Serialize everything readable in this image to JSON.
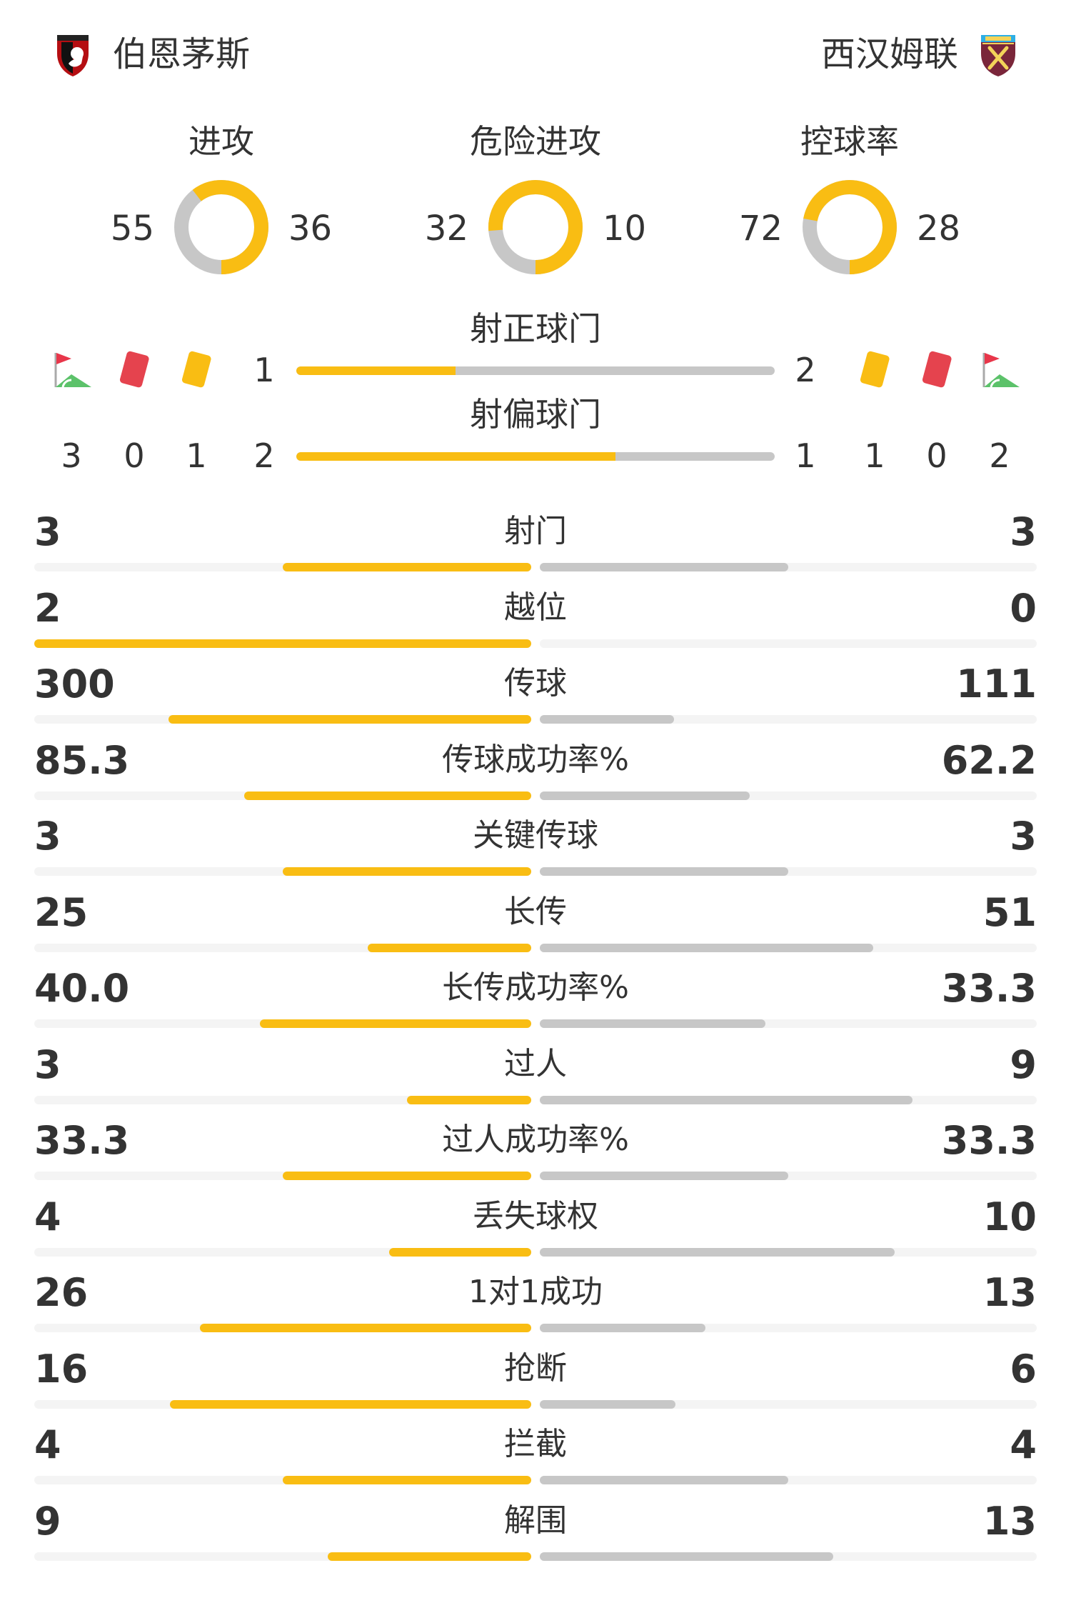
{
  "colors": {
    "home": "#f9bd13",
    "away": "#c7c7c7",
    "track": "#f4f4f4",
    "text": "#333333"
  },
  "home_team": {
    "name": "伯恩茅斯",
    "badge_icon": "bournemouth-badge-icon"
  },
  "away_team": {
    "name": "西汉姆联",
    "badge_icon": "west-ham-badge-icon"
  },
  "donuts": [
    {
      "label": "进攻",
      "home": "55",
      "away": "36",
      "home_share": 0.604
    },
    {
      "label": "危险进攻",
      "home": "32",
      "away": "10",
      "home_share": 0.762
    },
    {
      "label": "控球率",
      "home": "72",
      "away": "28",
      "home_share": 0.72
    }
  ],
  "shots_on_target": {
    "label": "射正球门",
    "home": "1",
    "away": "2",
    "home_share": 0.333
  },
  "shots_off_target": {
    "label": "射偏球门",
    "home": "2",
    "away": "1",
    "home_share": 0.667
  },
  "home_counts": {
    "corners": "3",
    "red_cards": "0",
    "yellow_cards": "1"
  },
  "away_counts": {
    "yellow_cards": "1",
    "red_cards": "0",
    "corners": "2"
  },
  "count_icons": [
    "corner-flag-icon",
    "red-card-icon",
    "yellow-card-icon"
  ],
  "stats": [
    {
      "label": "射门",
      "home": "3",
      "away": "3",
      "home_share": 0.5,
      "away_share": 0.5
    },
    {
      "label": "越位",
      "home": "2",
      "away": "0",
      "home_share": 1.0,
      "away_share": 0.0
    },
    {
      "label": "传球",
      "home": "300",
      "away": "111",
      "home_share": 0.73,
      "away_share": 0.27
    },
    {
      "label": "传球成功率%",
      "home": "85.3",
      "away": "62.2",
      "home_share": 0.578,
      "away_share": 0.422
    },
    {
      "label": "关键传球",
      "home": "3",
      "away": "3",
      "home_share": 0.5,
      "away_share": 0.5
    },
    {
      "label": "长传",
      "home": "25",
      "away": "51",
      "home_share": 0.329,
      "away_share": 0.671
    },
    {
      "label": "长传成功率%",
      "home": "40.0",
      "away": "33.3",
      "home_share": 0.546,
      "away_share": 0.454
    },
    {
      "label": "过人",
      "home": "3",
      "away": "9",
      "home_share": 0.25,
      "away_share": 0.75
    },
    {
      "label": "过人成功率%",
      "home": "33.3",
      "away": "33.3",
      "home_share": 0.5,
      "away_share": 0.5
    },
    {
      "label": "丢失球权",
      "home": "4",
      "away": "10",
      "home_share": 0.286,
      "away_share": 0.714
    },
    {
      "label": "1对1成功",
      "home": "26",
      "away": "13",
      "home_share": 0.667,
      "away_share": 0.333
    },
    {
      "label": "抢断",
      "home": "16",
      "away": "6",
      "home_share": 0.727,
      "away_share": 0.273
    },
    {
      "label": "拦截",
      "home": "4",
      "away": "4",
      "home_share": 0.5,
      "away_share": 0.5
    },
    {
      "label": "解围",
      "home": "9",
      "away": "13",
      "home_share": 0.409,
      "away_share": 0.591
    }
  ]
}
